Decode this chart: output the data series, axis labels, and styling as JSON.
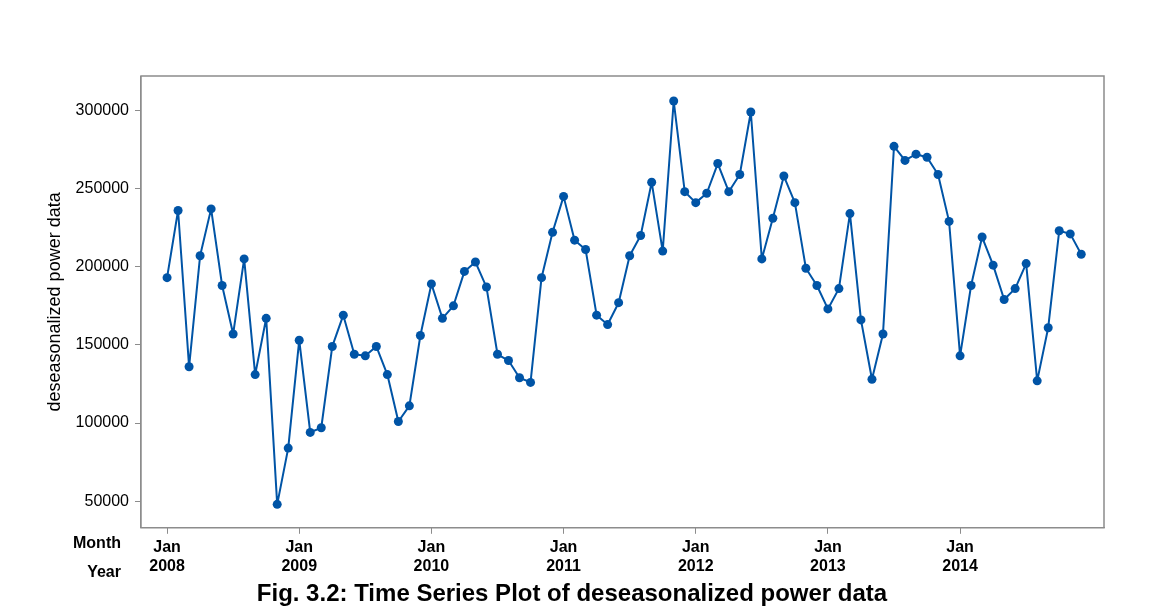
{
  "chart_data": {
    "type": "line",
    "title": "Fig. 3.2: Time Series Plot of deseasonalized power data",
    "ylabel": "deseasonalized power data",
    "annotations": [
      "Month",
      "Year"
    ],
    "x": [
      "2008-01",
      "2008-02",
      "2008-03",
      "2008-04",
      "2008-05",
      "2008-06",
      "2008-07",
      "2008-08",
      "2008-09",
      "2008-10",
      "2008-11",
      "2008-12",
      "2009-01",
      "2009-02",
      "2009-03",
      "2009-04",
      "2009-05",
      "2009-06",
      "2009-07",
      "2009-08",
      "2009-09",
      "2009-10",
      "2009-11",
      "2009-12",
      "2010-01",
      "2010-02",
      "2010-03",
      "2010-04",
      "2010-05",
      "2010-06",
      "2010-07",
      "2010-08",
      "2010-09",
      "2010-10",
      "2010-11",
      "2010-12",
      "2011-01",
      "2011-02",
      "2011-03",
      "2011-04",
      "2011-05",
      "2011-06",
      "2011-07",
      "2011-08",
      "2011-09",
      "2011-10",
      "2011-11",
      "2011-12",
      "2012-01",
      "2012-02",
      "2012-03",
      "2012-04",
      "2012-05",
      "2012-06",
      "2012-07",
      "2012-08",
      "2012-09",
      "2012-10",
      "2012-11",
      "2012-12",
      "2013-01",
      "2013-02",
      "2013-03",
      "2013-04",
      "2013-05",
      "2013-06",
      "2013-07",
      "2013-08",
      "2013-09",
      "2013-10",
      "2013-11",
      "2013-12",
      "2014-01",
      "2014-02",
      "2014-03",
      "2014-04",
      "2014-05",
      "2014-06",
      "2014-07",
      "2014-08",
      "2014-09",
      "2014-10",
      "2014-11",
      "2014-12"
    ],
    "series": [
      {
        "color": "#0054a6",
        "values": [
          193000,
          236000,
          136000,
          207000,
          237000,
          188000,
          157000,
          205000,
          131000,
          167000,
          48000,
          84000,
          153000,
          94000,
          97000,
          149000,
          169000,
          144000,
          143000,
          149000,
          131000,
          101000,
          111000,
          156000,
          189000,
          167000,
          175000,
          197000,
          203000,
          187000,
          144000,
          140000,
          129000,
          126000,
          193000,
          222000,
          245000,
          217000,
          211000,
          169000,
          163000,
          177000,
          207000,
          220000,
          254000,
          210000,
          306000,
          248000,
          241000,
          247000,
          266000,
          248000,
          259000,
          299000,
          205000,
          231000,
          258000,
          241000,
          199000,
          188000,
          173000,
          186000,
          234000,
          166000,
          128000,
          157000,
          277000,
          268000,
          272000,
          270000,
          259000,
          229000,
          143000,
          188000,
          219000,
          201000,
          179000,
          186000,
          202000,
          127000,
          161000,
          223000,
          221000,
          208000
        ]
      }
    ],
    "xlim": [
      "2007-10-20",
      "2015-02-03"
    ],
    "xticks": [
      {
        "value": "2008-01",
        "label": "Jan\n2008"
      },
      {
        "value": "2009-01",
        "label": "Jan\n2009"
      },
      {
        "value": "2010-01",
        "label": "Jan\n2010"
      },
      {
        "value": "2011-01",
        "label": "Jan\n2011"
      },
      {
        "value": "2012-01",
        "label": "Jan\n2012"
      },
      {
        "value": "2013-01",
        "label": "Jan\n2013"
      },
      {
        "value": "2014-01",
        "label": "Jan\n2014"
      }
    ],
    "ylim": [
      33000,
      322000
    ],
    "yticks": [
      50000,
      100000,
      150000,
      200000,
      250000,
      300000
    ],
    "grid": false,
    "legend": false,
    "marker": "circle",
    "line_style": "solid"
  }
}
